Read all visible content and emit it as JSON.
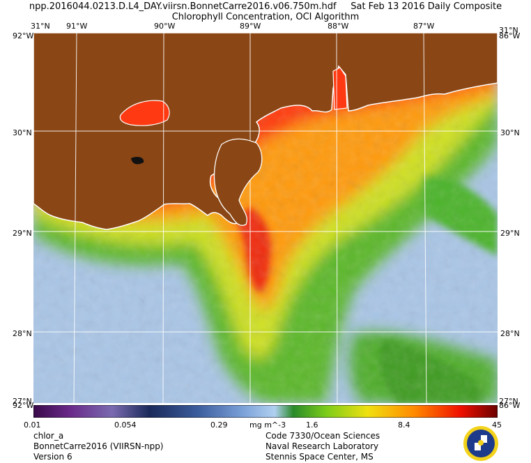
{
  "header": {
    "title_line1": "npp.2016044.0213.D.L4_DAY.viirsn.BonnetCarre2016.v06.750m.hdf     Sat Feb 13 2016 Daily Composite",
    "title_line2": "Chlorophyll Concentration, OCI Algorithm"
  },
  "map": {
    "lon_labels": [
      "91°W",
      "90°W",
      "89°W",
      "88°W",
      "87°W"
    ],
    "lat_labels": [
      "30°N",
      "29°N",
      "28°N"
    ],
    "corner_top_left": "31°N",
    "corner_top_left2": "92°W",
    "corner_top_right": "31°N",
    "corner_top_right2": "86°W",
    "corner_bottom_left": "27°N",
    "corner_bottom_left2": "92°W",
    "corner_bottom_right": "27°N",
    "corner_bottom_right2": "86°W",
    "colors": {
      "land": "#8b4513",
      "coast": "#ffffff",
      "grid": "#ffffff",
      "low": "#a8c6e8",
      "mid": "#6cc02a",
      "high": "#ff4a0a"
    }
  },
  "colorbar": {
    "tick_labels": [
      "0.01",
      "0.054",
      "0.29",
      "1.6",
      "8.4",
      "45"
    ],
    "units": "mg m^-3",
    "scale": "log"
  },
  "footer": {
    "left_line1": "chlor_a",
    "left_line2": "BonnetCarre2016 (VIIRSN-npp)",
    "left_line3": "Version 6",
    "right_line1": "Code 7330/Ocean Sciences",
    "right_line2": "Naval Research Laboratory",
    "right_line3": "Stennis Space Center, MS"
  },
  "logo": {
    "icon": "nrl-seal-icon"
  }
}
